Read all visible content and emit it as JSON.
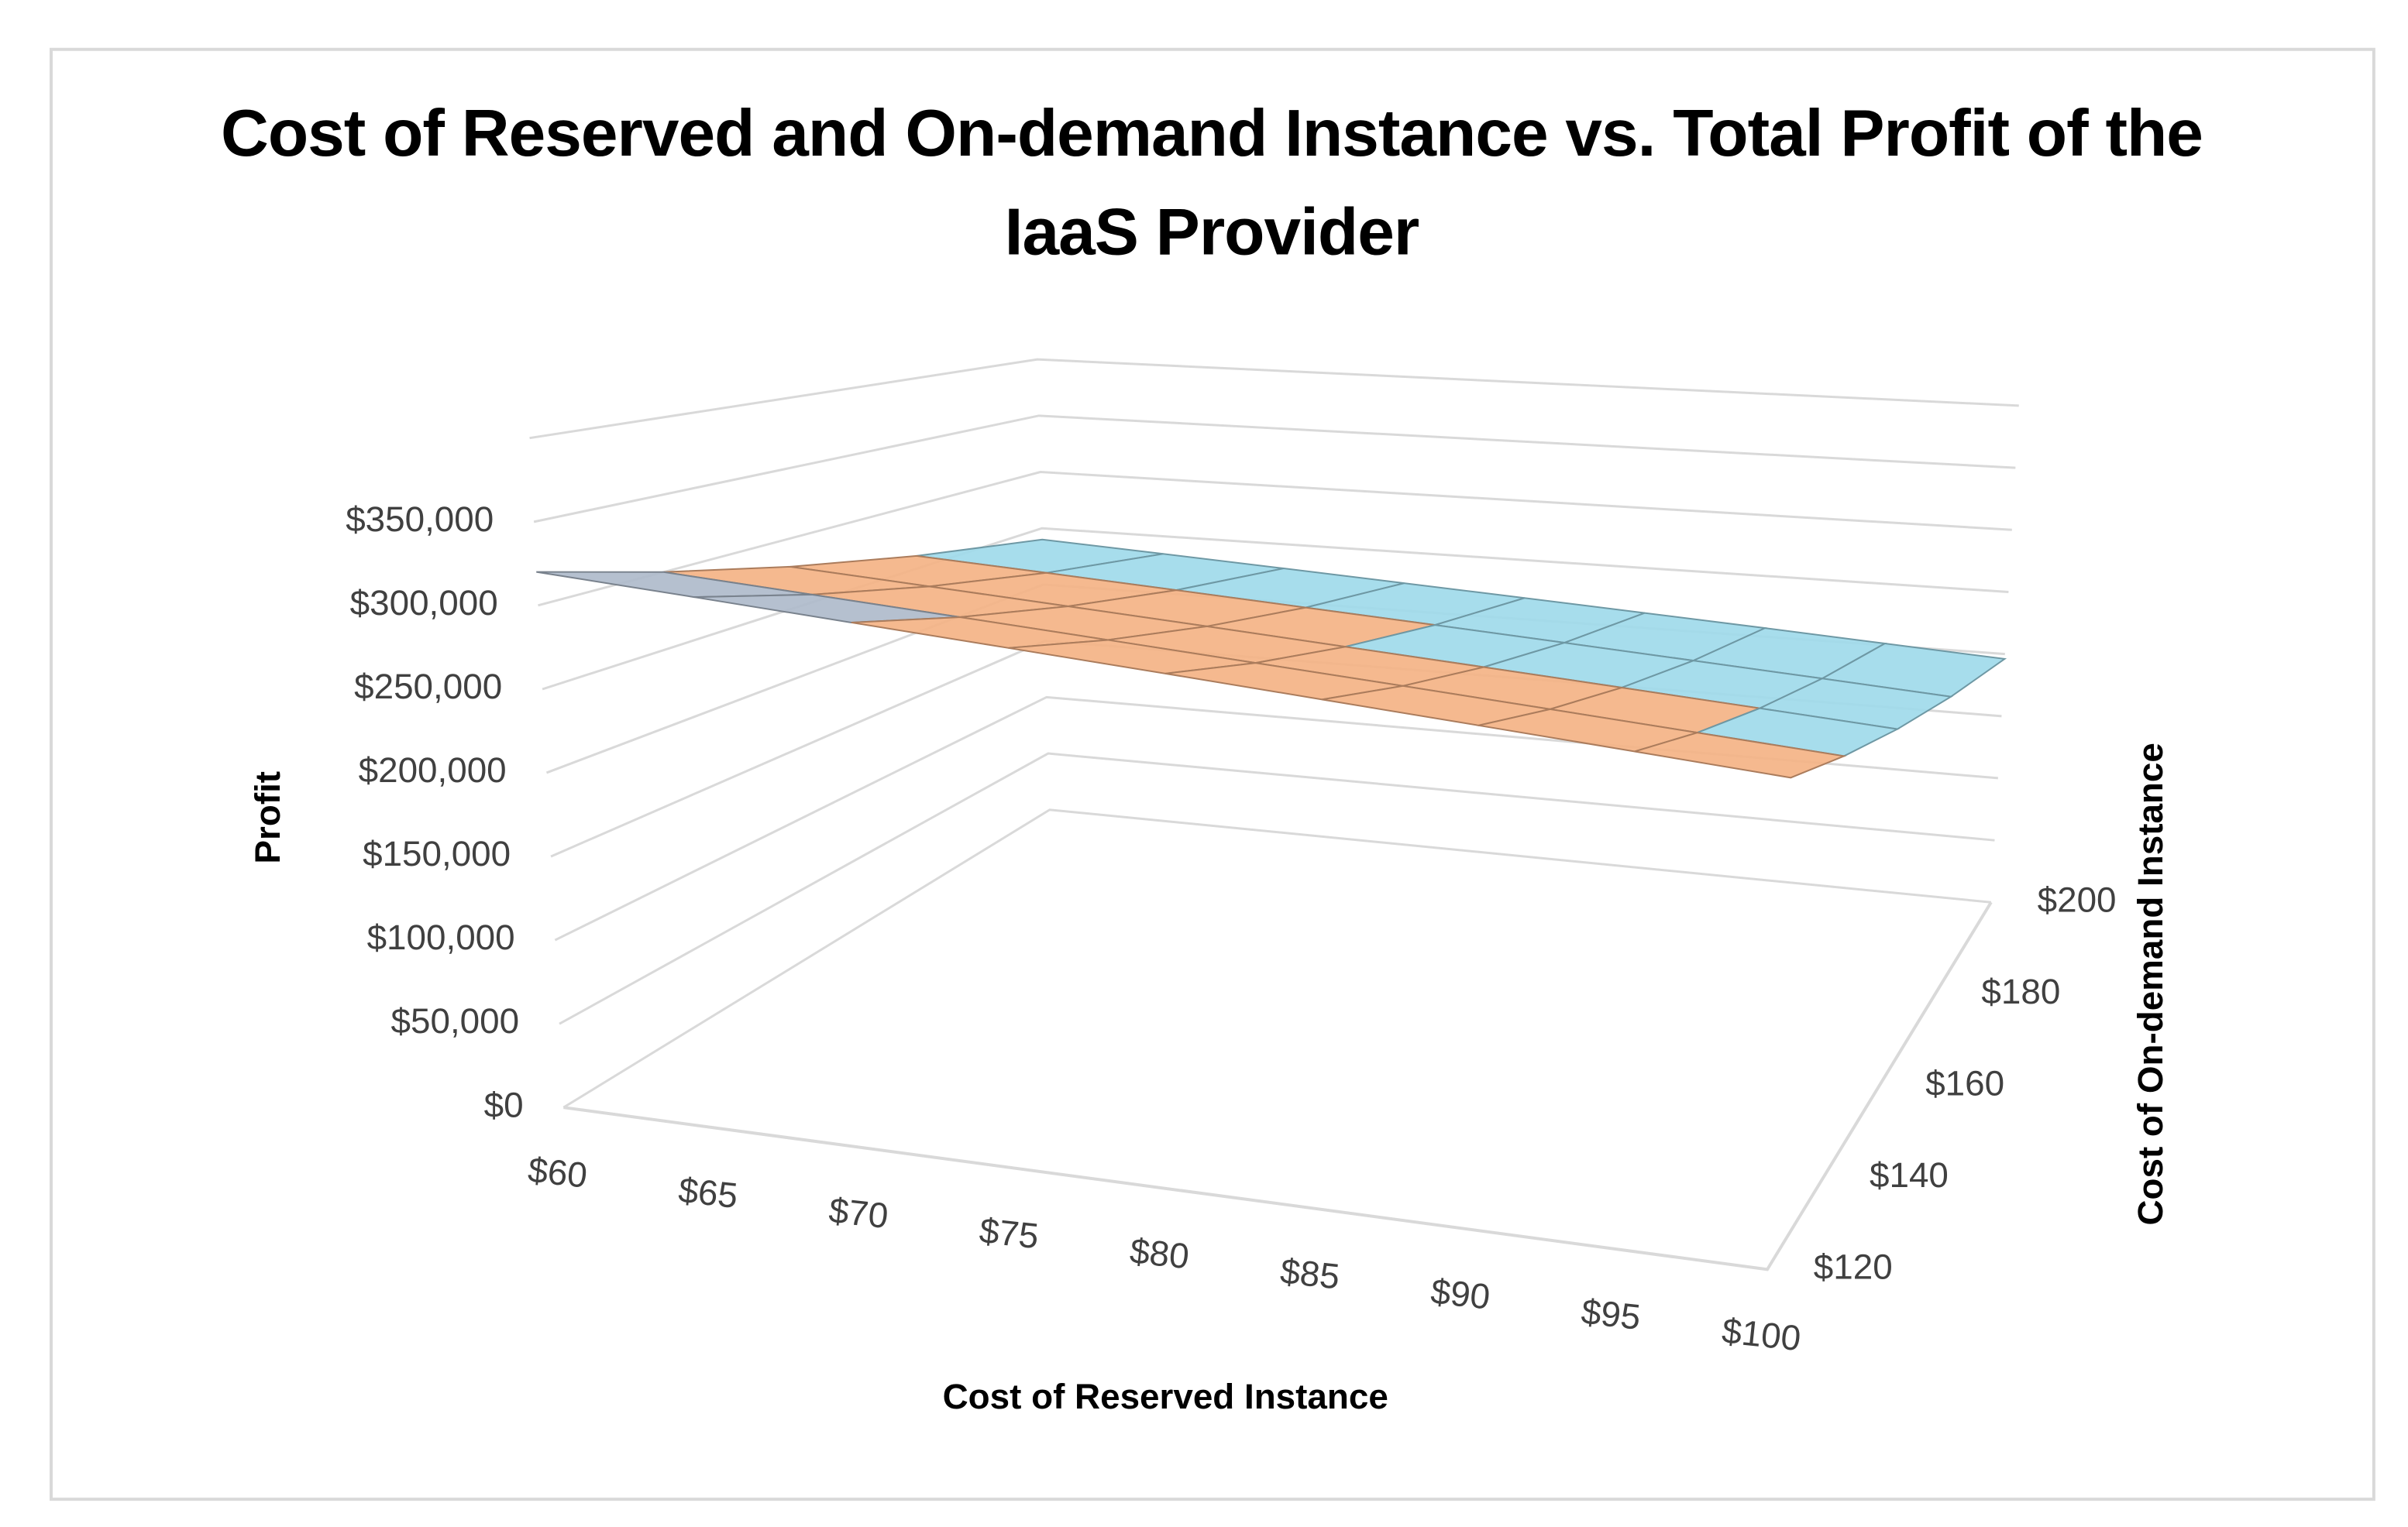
{
  "chart_data": {
    "type": "surface",
    "title": "Cost of Reserved and On-demand Instance vs. Total Profit of the IaaS Provider",
    "x_label": "Cost of Reserved Instance",
    "y_label": "Profit",
    "depth_label": "Cost of On-demand Instance",
    "categories": [
      "$60",
      "$65",
      "$70",
      "$75",
      "$80",
      "$85",
      "$90",
      "$95",
      "$100"
    ],
    "depth_categories": [
      "$120",
      "$140",
      "$160",
      "$180",
      "$200"
    ],
    "values": [
      [
        320000,
        314500,
        309000,
        303500,
        298000,
        292500,
        287000,
        281500,
        276000
      ],
      [
        300000,
        294500,
        289000,
        283500,
        278000,
        272500,
        267000,
        261500,
        256000
      ],
      [
        280000,
        274500,
        269000,
        263500,
        258000,
        252500,
        247000,
        241500,
        236000
      ],
      [
        260000,
        254500,
        249000,
        243500,
        238000,
        232500,
        227000,
        221500,
        216000
      ],
      [
        240000,
        234500,
        229000,
        223500,
        218000,
        212500,
        207000,
        201500,
        196000
      ]
    ],
    "ylim": [
      0,
      400000
    ],
    "yticks": [
      {
        "value": 0,
        "label": "$0"
      },
      {
        "value": 50000,
        "label": "$50,000"
      },
      {
        "value": 100000,
        "label": "$100,000"
      },
      {
        "value": 150000,
        "label": "$150,000"
      },
      {
        "value": 200000,
        "label": "$200,000"
      },
      {
        "value": 250000,
        "label": "$250,000"
      },
      {
        "value": 300000,
        "label": "$300,000"
      },
      {
        "value": 350000,
        "label": "$350,000"
      }
    ],
    "band_colors": [
      "#4472c4",
      "#ed7d31",
      "#a5a5a5",
      "#c9a0dc",
      "#9dd9ea",
      "#f4b183",
      "#adb9ca",
      "#5b9bd5"
    ],
    "grid": true
  }
}
